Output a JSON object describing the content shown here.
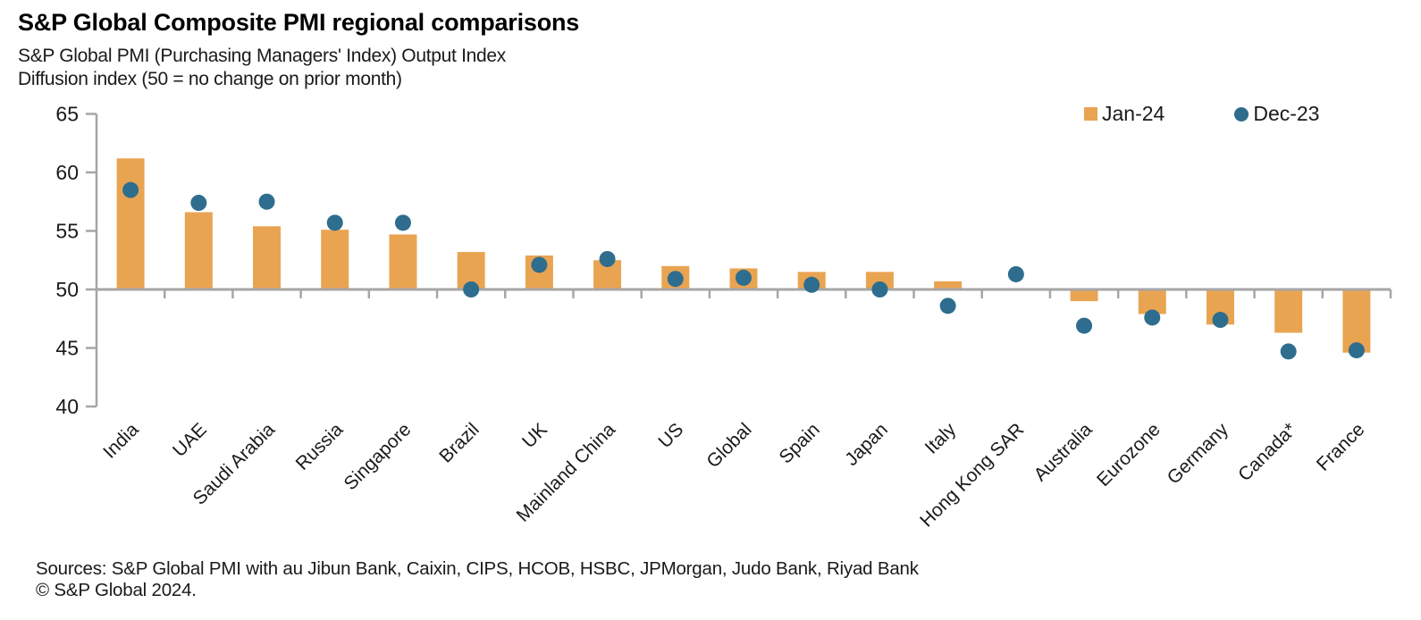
{
  "title": "S&P Global Composite PMI regional comparisons",
  "subtitle_line1": "S&P Global PMI (Purchasing Managers' Index) Output Index",
  "subtitle_line2": "Diffusion index (50 = no change on prior month)",
  "footer": {
    "sources": "Sources: S&P Global PMI with au Jibun Bank, Caixin, CIPS, HCOB, HSBC, JPMorgan, Judo Bank, Riyad Bank",
    "copyright": "© S&P Global 2024."
  },
  "chart_data": {
    "type": "bar",
    "title": "S&P Global Composite PMI regional comparisons",
    "categories": [
      "India",
      "UAE",
      "Saudi Arabia",
      "Russia",
      "Singapore",
      "Brazil",
      "UK",
      "Mainland China",
      "US",
      "Global",
      "Spain",
      "Japan",
      "Italy",
      "Hong Kong SAR",
      "Australia",
      "Eurozone",
      "Germany",
      "Canada*",
      "France"
    ],
    "series": [
      {
        "name": "Jan-24",
        "type": "bar",
        "marker": "square",
        "color": "#E9A452",
        "values": [
          61.2,
          56.6,
          55.4,
          55.1,
          54.7,
          53.2,
          52.9,
          52.5,
          52.0,
          51.8,
          51.5,
          51.5,
          50.7,
          49.9,
          49.0,
          47.9,
          47.0,
          46.3,
          44.6
        ]
      },
      {
        "name": "Dec-23",
        "type": "scatter",
        "marker": "circle",
        "color": "#2E6D8E",
        "values": [
          58.5,
          57.4,
          57.5,
          55.7,
          55.7,
          50.0,
          52.1,
          52.6,
          50.9,
          51.0,
          50.4,
          50.0,
          48.6,
          51.3,
          46.9,
          47.6,
          47.4,
          44.7,
          44.8
        ]
      }
    ],
    "baseline": 50,
    "ylim": [
      40,
      65
    ],
    "yticks": [
      40,
      45,
      50,
      55,
      60,
      65
    ],
    "xlabel": "",
    "ylabel": "",
    "grid": false,
    "legend_position": "top-right",
    "axis_color": "#A6A6A6",
    "text_color": "#1a1a1a"
  }
}
